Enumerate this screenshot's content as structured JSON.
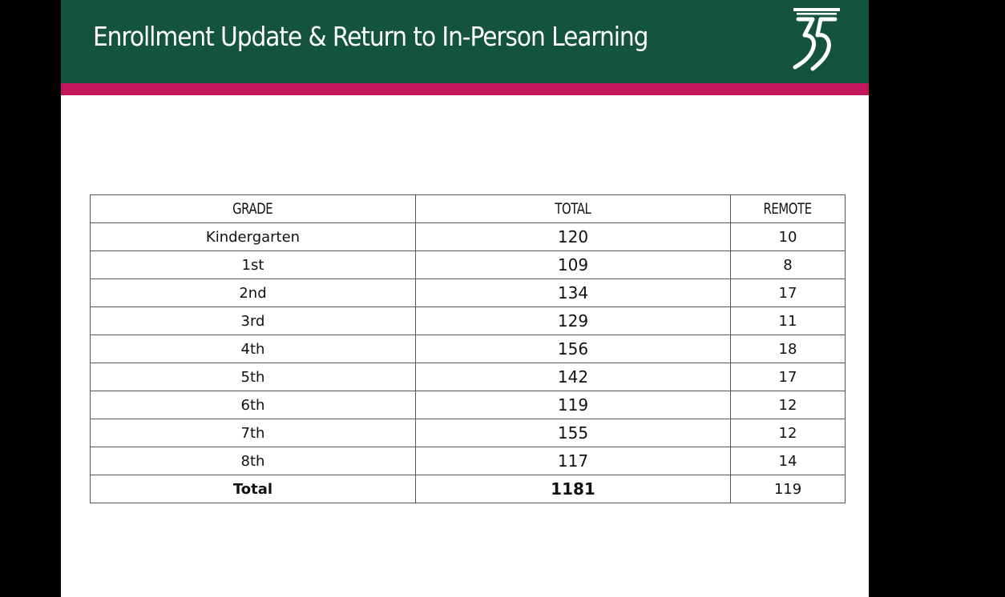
{
  "slide": {
    "title": "Enrollment Update & Return to In-Person Learning",
    "logo_icon": "logo-35-icon",
    "colors": {
      "header_bg": "#14543f",
      "accent_bar": "#c0185a",
      "slide_bg": "#ffffff",
      "outer_bg": "#000000"
    }
  },
  "table": {
    "headers": {
      "grade": "GRADE",
      "total": "TOTAL",
      "remote": "REMOTE"
    },
    "rows": [
      {
        "grade": "Kindergarten",
        "total": "120",
        "remote": "10"
      },
      {
        "grade": "1st",
        "total": "109",
        "remote": "8"
      },
      {
        "grade": "2nd",
        "total": "134",
        "remote": "17"
      },
      {
        "grade": "3rd",
        "total": "129",
        "remote": "11"
      },
      {
        "grade": "4th",
        "total": "156",
        "remote": "18"
      },
      {
        "grade": "5th",
        "total": "142",
        "remote": "17"
      },
      {
        "grade": "6th",
        "total": "119",
        "remote": "12"
      },
      {
        "grade": "7th",
        "total": "155",
        "remote": "12"
      },
      {
        "grade": "8th",
        "total": "117",
        "remote": "14"
      }
    ],
    "total_row": {
      "grade": "Total",
      "total": "1181",
      "remote": "119"
    }
  }
}
